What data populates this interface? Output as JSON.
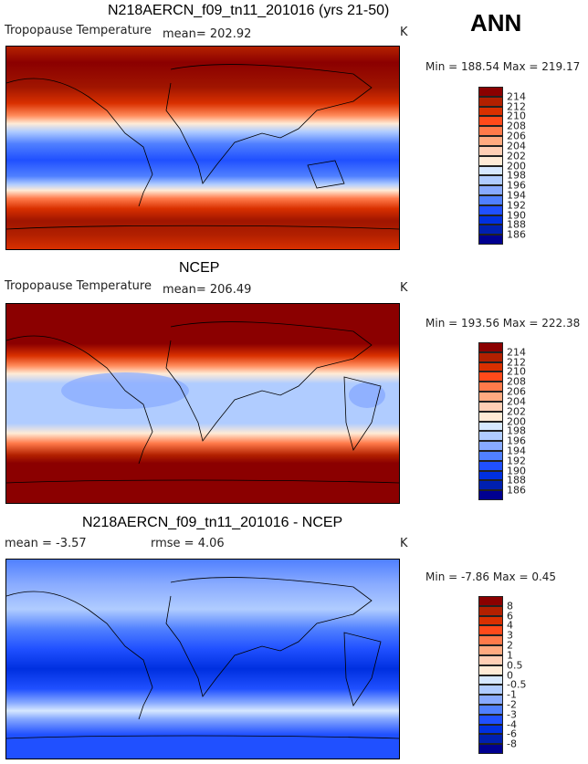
{
  "season": "ANN",
  "units": "K",
  "colorbar_colors": [
    "#8b0000",
    "#b22000",
    "#d93000",
    "#ff4a1a",
    "#ff7a4a",
    "#ffaa80",
    "#ffcfb5",
    "#ffebd6",
    "#d6e8ff",
    "#b0ccff",
    "#88aaff",
    "#5080ff",
    "#2050ff",
    "#0030e0",
    "#0020b0",
    "#000090"
  ],
  "panels": [
    {
      "title": "N218AERCN_f09_tn11_201016 (yrs 21-50)",
      "variable": "Tropopause Temperature",
      "stat1": "mean= 202.92",
      "stat2": "",
      "minmax": "Min = 188.54 Max = 219.17",
      "units": "K",
      "levels": [
        "214",
        "212",
        "210",
        "208",
        "206",
        "204",
        "202",
        "200",
        "198",
        "196",
        "194",
        "192",
        "190",
        "188",
        "186"
      ]
    },
    {
      "title": "NCEP",
      "variable": "Tropopause Temperature",
      "stat1": "mean= 206.49",
      "stat2": "",
      "minmax": "Min = 193.56 Max = 222.38",
      "units": "K",
      "levels": [
        "214",
        "212",
        "210",
        "208",
        "206",
        "204",
        "202",
        "200",
        "198",
        "196",
        "194",
        "192",
        "190",
        "188",
        "186"
      ]
    },
    {
      "title": "N218AERCN_f09_tn11_201016 - NCEP",
      "variable": "",
      "stat1": "mean =   -3.57",
      "stat2": "rmse =    4.06",
      "minmax": "Min =   -7.86 Max =    0.45",
      "units": "K",
      "levels": [
        "8",
        "6",
        "4",
        "3",
        "2",
        "1",
        "0.5",
        "0",
        "-0.5",
        "-1",
        "-2",
        "-3",
        "-4",
        "-6",
        "-8"
      ]
    }
  ]
}
